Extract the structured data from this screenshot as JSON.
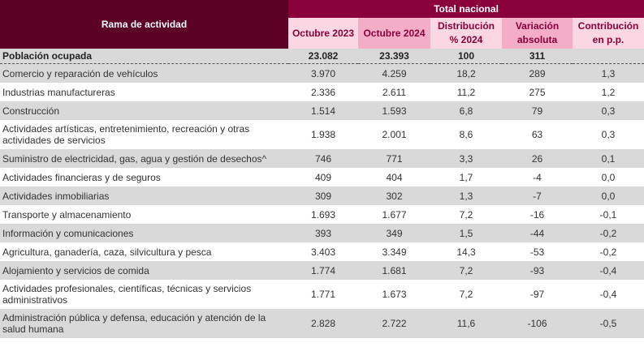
{
  "header": {
    "rama": "Rama de actividad",
    "total": "Total nacional",
    "columns": [
      "Octubre 2023",
      "Octubre 2024",
      "Distribución % 2024",
      "Variación absoluta",
      "Contribución en p.p."
    ]
  },
  "total_row": {
    "label": "Población ocupada",
    "values": [
      "23.082",
      "23.393",
      "100",
      "311",
      ""
    ]
  },
  "rows": [
    {
      "label": "Comercio y reparación de vehículos",
      "values": [
        "3.970",
        "4.259",
        "18,2",
        "289",
        "1,3"
      ]
    },
    {
      "label": "Industrias manufactureras",
      "values": [
        "2.336",
        "2.611",
        "11,2",
        "275",
        "1,2"
      ]
    },
    {
      "label": "Construcción",
      "values": [
        "1.514",
        "1.593",
        "6,8",
        "79",
        "0,3"
      ]
    },
    {
      "label": "Actividades artísticas, entretenimiento, recreación y otras actividades de servicios",
      "values": [
        "1.938",
        "2.001",
        "8,6",
        "63",
        "0,3"
      ]
    },
    {
      "label": "Suministro de electricidad, gas, agua y gestión de desechos^",
      "values": [
        "746",
        "771",
        "3,3",
        "26",
        "0,1"
      ]
    },
    {
      "label": "Actividades financieras y de seguros",
      "values": [
        "409",
        "404",
        "1,7",
        "-4",
        "0,0"
      ]
    },
    {
      "label": "Actividades inmobiliarias",
      "values": [
        "309",
        "302",
        "1,3",
        "-7",
        "0,0"
      ]
    },
    {
      "label": "Transporte y almacenamiento",
      "values": [
        "1.693",
        "1.677",
        "7,2",
        "-16",
        "-0,1"
      ]
    },
    {
      "label": "Información y comunicaciones",
      "values": [
        "393",
        "349",
        "1,5",
        "-44",
        "-0,2"
      ]
    },
    {
      "label": "Agricultura, ganadería, caza, silvicultura y pesca",
      "values": [
        "3.403",
        "3.349",
        "14,3",
        "-53",
        "-0,2"
      ]
    },
    {
      "label": "Alojamiento y servicios de comida",
      "values": [
        "1.774",
        "1.681",
        "7,2",
        "-93",
        "-0,4"
      ]
    },
    {
      "label": "Actividades profesionales, científicas, técnicas y servicios administrativos",
      "values": [
        "1.771",
        "1.673",
        "7,2",
        "-97",
        "-0,4"
      ]
    },
    {
      "label": "Administración pública y defensa, educación y atención de la salud humana",
      "values": [
        "2.828",
        "2.722",
        "11,6",
        "-106",
        "-0,5"
      ]
    }
  ],
  "colors": {
    "header_dark": "#5c0125",
    "header": "#8a003a",
    "sub_light": "#fad7e3",
    "sub_dark": "#f3adc6",
    "row_gray": "#d9d9d9"
  }
}
